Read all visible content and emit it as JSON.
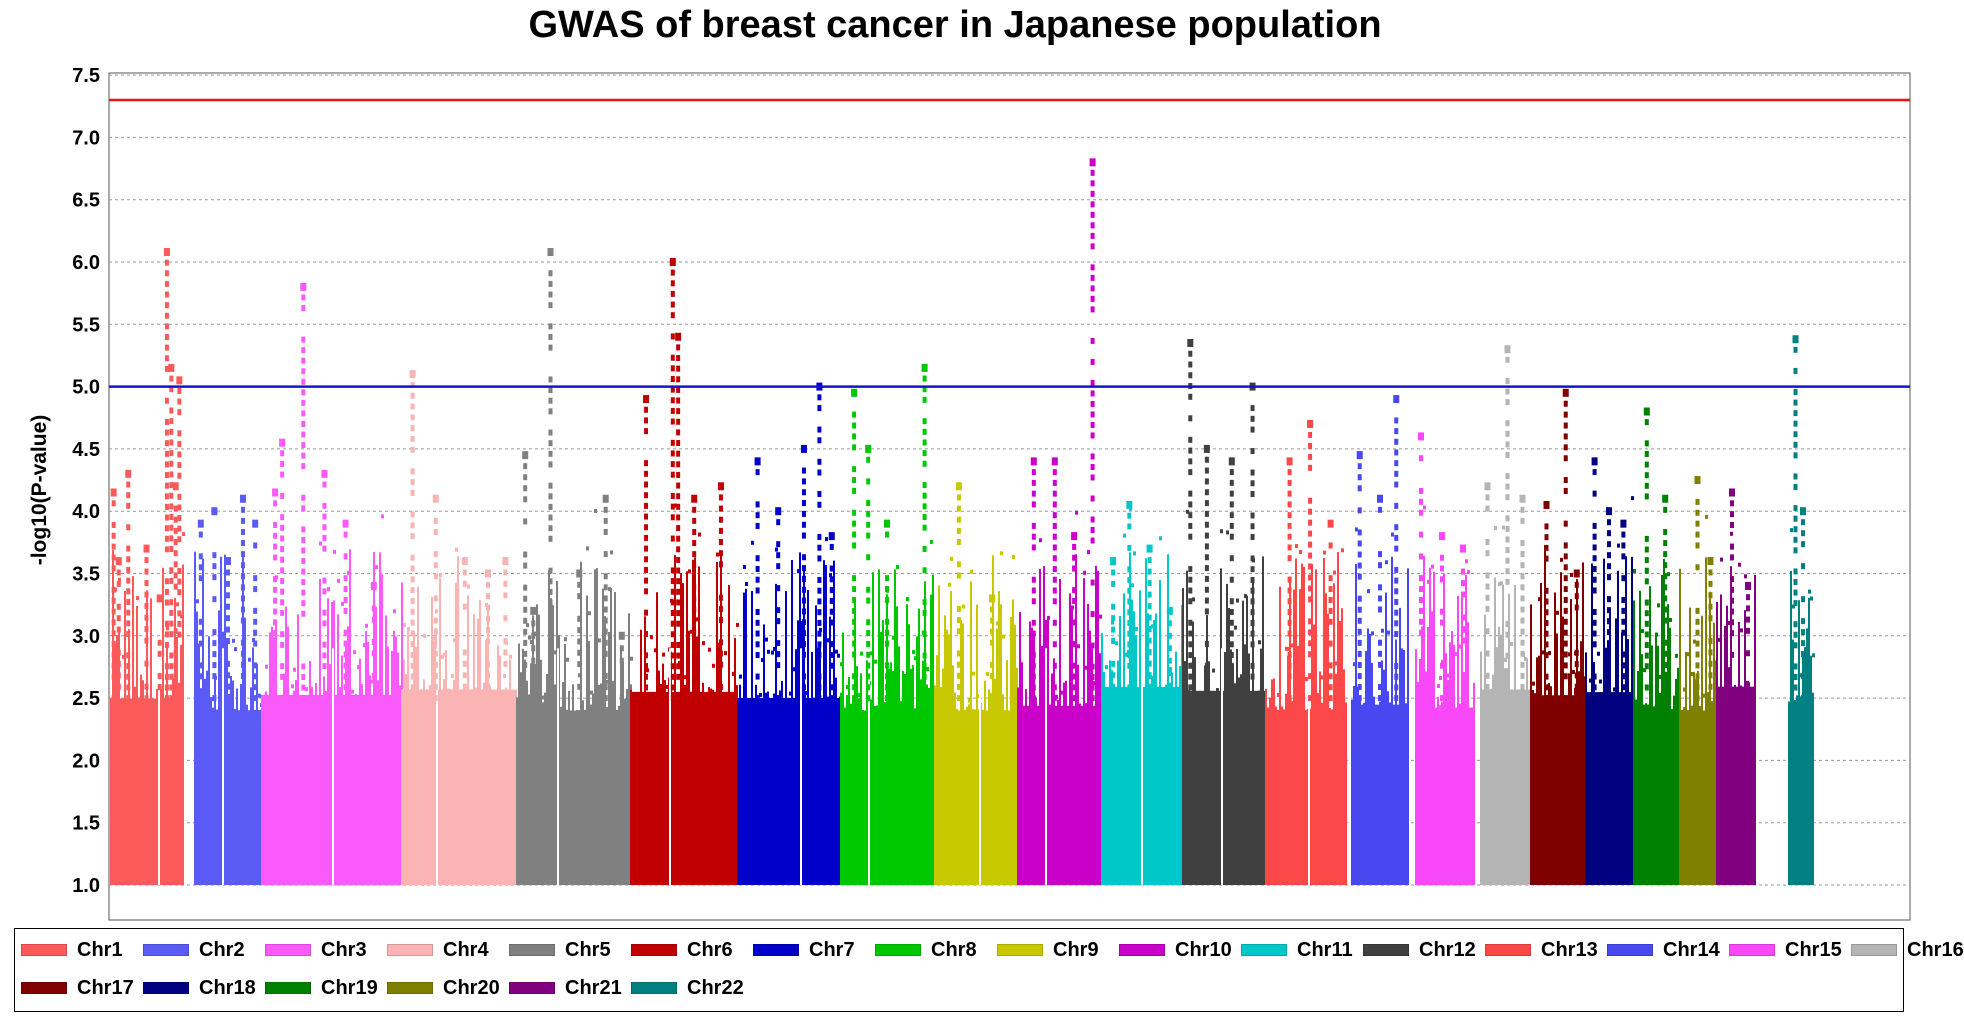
{
  "chart_data": {
    "type": "scatter",
    "title": "GWAS of breast cancer in Japanese population",
    "xlabel": "",
    "ylabel": "-log10(P-value)",
    "ylim": [
      1.0,
      7.5
    ],
    "yticks": [
      "1.0",
      "1.5",
      "2.0",
      "2.5",
      "3.0",
      "3.5",
      "4.0",
      "4.5",
      "5.0",
      "5.5",
      "6.0",
      "6.5",
      "7.0",
      "7.5"
    ],
    "grid": "horizontal dotted",
    "legend_position": "bottom",
    "threshold_lines": [
      {
        "value": 7.3,
        "color": "#e8141a"
      },
      {
        "value": 5.0,
        "color": "#1414c8"
      }
    ],
    "series": [
      {
        "name": "Chr1",
        "color": "#fc5a5a",
        "peaks": [
          [
            0.05,
            4.15
          ],
          [
            0.12,
            3.6
          ],
          [
            0.25,
            4.3
          ],
          [
            0.5,
            3.7
          ],
          [
            0.68,
            3.3
          ],
          [
            0.78,
            6.08
          ],
          [
            0.84,
            5.15
          ],
          [
            0.9,
            4.2
          ],
          [
            0.95,
            5.05
          ]
        ]
      },
      {
        "name": "Chr2",
        "color": "#5a5af5",
        "peaks": [
          [
            0.1,
            3.9
          ],
          [
            0.3,
            4.0
          ],
          [
            0.5,
            3.6
          ],
          [
            0.72,
            4.1
          ],
          [
            0.9,
            3.9
          ]
        ]
      },
      {
        "name": "Chr3",
        "color": "#fa5afa",
        "peaks": [
          [
            0.1,
            4.15
          ],
          [
            0.15,
            4.55
          ],
          [
            0.3,
            5.8
          ],
          [
            0.45,
            4.3
          ],
          [
            0.6,
            3.9
          ],
          [
            0.8,
            3.4
          ]
        ]
      },
      {
        "name": "Chr4",
        "color": "#fab4b4",
        "peaks": [
          [
            0.1,
            5.1
          ],
          [
            0.3,
            4.1
          ],
          [
            0.55,
            3.6
          ],
          [
            0.75,
            3.5
          ],
          [
            0.9,
            3.6
          ]
        ]
      },
      {
        "name": "Chr5",
        "color": "#808080",
        "peaks": [
          [
            0.08,
            4.45
          ],
          [
            0.15,
            3.2
          ],
          [
            0.3,
            6.08
          ],
          [
            0.55,
            3.5
          ],
          [
            0.78,
            4.1
          ],
          [
            0.92,
            3.0
          ]
        ]
      },
      {
        "name": "Chr6",
        "color": "#c00000",
        "peaks": [
          [
            0.15,
            4.9
          ],
          [
            0.4,
            6.0
          ],
          [
            0.45,
            5.4
          ],
          [
            0.6,
            4.1
          ],
          [
            0.85,
            4.2
          ]
        ]
      },
      {
        "name": "Chr7",
        "color": "#0000c8",
        "peaks": [
          [
            0.2,
            4.4
          ],
          [
            0.4,
            4.0
          ],
          [
            0.65,
            4.5
          ],
          [
            0.8,
            5.0
          ],
          [
            0.92,
            3.8
          ]
        ]
      },
      {
        "name": "Chr8",
        "color": "#00c800",
        "peaks": [
          [
            0.15,
            4.95
          ],
          [
            0.3,
            4.5
          ],
          [
            0.5,
            3.9
          ],
          [
            0.9,
            5.15
          ]
        ]
      },
      {
        "name": "Chr9",
        "color": "#c8c800",
        "peaks": [
          [
            0.3,
            4.2
          ],
          [
            0.7,
            3.3
          ]
        ]
      },
      {
        "name": "Chr10",
        "color": "#c800c8",
        "peaks": [
          [
            0.2,
            4.4
          ],
          [
            0.45,
            4.4
          ],
          [
            0.68,
            3.8
          ],
          [
            0.9,
            6.8
          ]
        ]
      },
      {
        "name": "Chr11",
        "color": "#00c8c8",
        "peaks": [
          [
            0.15,
            3.6
          ],
          [
            0.35,
            4.05
          ],
          [
            0.6,
            3.7
          ],
          [
            0.85,
            3.2
          ]
        ]
      },
      {
        "name": "Chr12",
        "color": "#404040",
        "peaks": [
          [
            0.1,
            5.35
          ],
          [
            0.3,
            4.5
          ],
          [
            0.6,
            4.4
          ],
          [
            0.85,
            5.0
          ]
        ]
      },
      {
        "name": "Chr13",
        "color": "#fc4848",
        "peaks": [
          [
            0.3,
            4.4
          ],
          [
            0.55,
            4.7
          ],
          [
            0.8,
            3.9
          ]
        ]
      },
      {
        "name": "Chr14",
        "color": "#4848f0",
        "peaks": [
          [
            0.15,
            4.45
          ],
          [
            0.5,
            4.1
          ],
          [
            0.78,
            4.9
          ]
        ]
      },
      {
        "name": "Chr15",
        "color": "#f848f8",
        "peaks": [
          [
            0.1,
            4.6
          ],
          [
            0.45,
            3.8
          ],
          [
            0.8,
            3.7
          ]
        ]
      },
      {
        "name": "Chr16",
        "color": "#b4b4b4",
        "peaks": [
          [
            0.15,
            4.2
          ],
          [
            0.55,
            5.3
          ],
          [
            0.85,
            4.1
          ]
        ]
      },
      {
        "name": "Chr17",
        "color": "#800000",
        "peaks": [
          [
            0.3,
            4.05
          ],
          [
            0.65,
            4.95
          ],
          [
            0.85,
            3.5
          ]
        ]
      },
      {
        "name": "Chr18",
        "color": "#000080",
        "peaks": [
          [
            0.2,
            4.4
          ],
          [
            0.5,
            4.0
          ],
          [
            0.8,
            3.9
          ]
        ]
      },
      {
        "name": "Chr19",
        "color": "#008000",
        "peaks": [
          [
            0.3,
            4.8
          ],
          [
            0.7,
            4.1
          ]
        ]
      },
      {
        "name": "Chr20",
        "color": "#808000",
        "peaks": [
          [
            0.5,
            4.25
          ],
          [
            0.85,
            3.6
          ]
        ]
      },
      {
        "name": "Chr21",
        "color": "#800080",
        "peaks": [
          [
            0.4,
            4.15
          ],
          [
            0.8,
            3.4
          ]
        ]
      },
      {
        "name": "Chr22",
        "color": "#008080",
        "peaks": [
          [
            0.3,
            5.38
          ],
          [
            0.6,
            4.0
          ]
        ]
      }
    ]
  }
}
